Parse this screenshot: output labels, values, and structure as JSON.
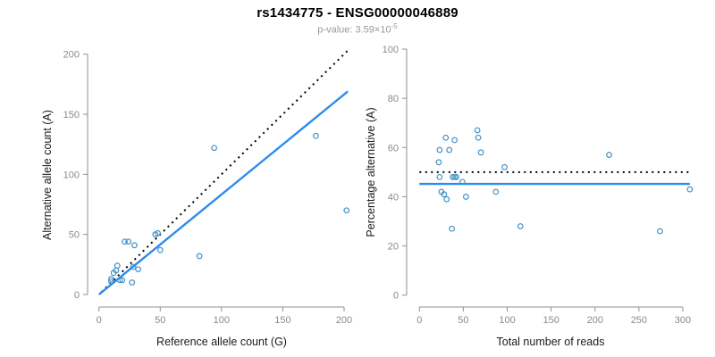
{
  "header": {
    "title": "rs1434775 - ENSG00000046889",
    "p_value_prefix": "p-value: 3.59×10",
    "p_value_exponent": "-5",
    "p_value": "3.59e-5"
  },
  "colors": {
    "regression_blue": "#2e8aef",
    "point_blue": "#4292c6",
    "identity_black": "#000000",
    "axis_gray": "#8f8f8f",
    "tick_text_gray": "#8a8a8a",
    "axis_title_black": "#1a1a1a",
    "subtitle_gray": "#979797"
  },
  "chart_data": [
    {
      "type": "scatter",
      "panel": "left",
      "title": "",
      "xlabel": "Reference allele count (G)",
      "ylabel": "Alternative allele count (A)",
      "xlim": [
        0,
        205
      ],
      "ylim": [
        0,
        205
      ],
      "xticks": [
        0,
        50,
        100,
        150,
        200
      ],
      "yticks": [
        0,
        50,
        100,
        150,
        200
      ],
      "grid": false,
      "legend": "none",
      "points": [
        [
          10,
          13
        ],
        [
          10,
          11
        ],
        [
          12,
          18
        ],
        [
          14,
          20
        ],
        [
          15,
          24
        ],
        [
          17,
          12
        ],
        [
          19,
          12
        ],
        [
          21,
          44
        ],
        [
          24,
          44
        ],
        [
          27,
          10
        ],
        [
          28,
          23
        ],
        [
          29,
          41
        ],
        [
          32,
          21
        ],
        [
          46,
          50
        ],
        [
          48,
          51
        ],
        [
          50,
          37
        ],
        [
          82,
          32
        ],
        [
          94,
          122
        ],
        [
          177,
          132
        ],
        [
          202,
          70
        ]
      ],
      "lines": [
        {
          "name": "identity-line",
          "style": "dashed",
          "color": "#000000",
          "x1": 2,
          "y1": 2,
          "x2": 203,
          "y2": 203
        },
        {
          "name": "regression-line",
          "style": "solid",
          "color": "#2e8aef",
          "x1": 0,
          "y1": 0,
          "x2": 203,
          "y2": 169
        }
      ]
    },
    {
      "type": "scatter",
      "panel": "right",
      "title": "",
      "xlabel": "Total number of reads",
      "ylabel": "Percentage alternative (A)",
      "xlim": [
        0,
        310
      ],
      "ylim": [
        0,
        100
      ],
      "xticks": [
        0,
        50,
        100,
        150,
        200,
        250,
        300
      ],
      "yticks": [
        0,
        20,
        40,
        60,
        80,
        100
      ],
      "grid": false,
      "legend": "none",
      "points": [
        [
          30,
          64
        ],
        [
          23,
          59
        ],
        [
          34,
          59
        ],
        [
          40,
          63
        ],
        [
          22,
          54
        ],
        [
          66,
          67
        ],
        [
          67,
          64
        ],
        [
          70,
          58
        ],
        [
          216,
          57
        ],
        [
          97,
          52
        ],
        [
          23,
          48
        ],
        [
          38,
          48
        ],
        [
          40,
          48
        ],
        [
          42,
          48
        ],
        [
          49,
          46
        ],
        [
          25,
          42
        ],
        [
          28,
          41
        ],
        [
          31,
          39
        ],
        [
          53,
          40
        ],
        [
          87,
          42
        ],
        [
          308,
          43
        ],
        [
          115,
          28
        ],
        [
          37,
          27
        ],
        [
          274,
          26
        ]
      ],
      "lines": [
        {
          "name": "expected-50pct-line",
          "style": "dashed",
          "color": "#000000",
          "x1": 0,
          "y1": 50,
          "x2": 307,
          "y2": 50
        },
        {
          "name": "mean-percentage-line",
          "style": "solid",
          "color": "#2e8aef",
          "x1": 0,
          "y1": 45.2,
          "x2": 308,
          "y2": 45.2
        }
      ]
    }
  ]
}
